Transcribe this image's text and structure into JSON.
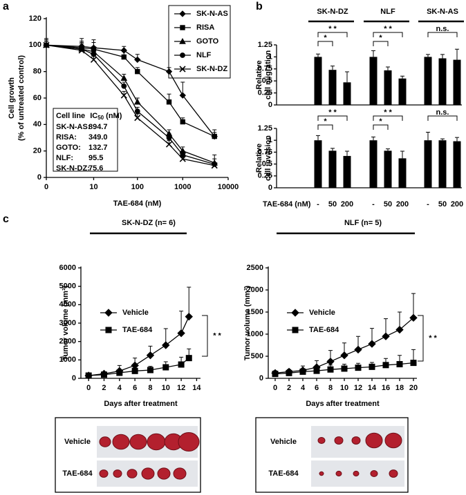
{
  "panel_labels": [
    "a",
    "b",
    "c"
  ],
  "chart_data": [
    {
      "type": "line",
      "ylabel": [
        "Cell growth",
        "(% of untreated control)"
      ],
      "xlabel": "TAE-684 (nM)",
      "xscale": "log1p",
      "x": [
        0,
        5,
        10,
        50,
        100,
        500,
        1000,
        5000
      ],
      "xlim": [
        0,
        10000
      ],
      "xticks": [
        0,
        10,
        100,
        1000,
        10000
      ],
      "ylim": [
        0,
        120
      ],
      "yticks": [
        0,
        20,
        40,
        60,
        80,
        100,
        120
      ],
      "legend": "upper right",
      "series": [
        {
          "name": "SK-N-AS",
          "marker": "diamond",
          "color": "#000000",
          "values": [
            100,
            99,
            98,
            96,
            89,
            80,
            62,
            31
          ],
          "errors": [
            3,
            4,
            6,
            3,
            4,
            3,
            10,
            3
          ]
        },
        {
          "name": "RISA",
          "marker": "square",
          "color": "#000000",
          "values": [
            100,
            98,
            97,
            91,
            80,
            57,
            42,
            31
          ],
          "errors": [
            3,
            3,
            5,
            4,
            3,
            6,
            3,
            5
          ]
        },
        {
          "name": "GOTO",
          "marker": "triangle",
          "color": "#000000",
          "values": [
            100,
            97,
            95,
            75,
            57,
            33,
            20,
            11
          ],
          "errors": [
            5,
            8,
            3,
            3,
            3,
            3,
            3,
            6
          ]
        },
        {
          "name": "NLF",
          "marker": "circle",
          "color": "#000000",
          "values": [
            100,
            97,
            93,
            69,
            50,
            30,
            17,
            10
          ],
          "errors": [
            4,
            5,
            4,
            3,
            3,
            3,
            3,
            4
          ]
        },
        {
          "name": "SK-N-DZ",
          "marker": "x",
          "color": "#000000",
          "values": [
            100,
            96,
            89,
            62,
            45,
            25,
            14,
            9
          ],
          "errors": [
            3,
            3,
            3,
            3,
            3,
            3,
            2,
            2
          ]
        }
      ],
      "table": {
        "header": [
          "Cell line",
          "IC",
          "50",
          " (nM)"
        ],
        "rows": [
          [
            "SK-N-AS:",
            "894.7"
          ],
          [
            "RISA:",
            "349.0"
          ],
          [
            "GOTO:",
            "132.7"
          ],
          [
            "NLF:",
            "95.5"
          ],
          [
            "SK-N-DZ:",
            "75.6"
          ]
        ]
      }
    },
    {
      "type": "bar-grid",
      "groups": [
        "SK-N-DZ",
        "NLF",
        "SK-N-AS"
      ],
      "categories": [
        "-",
        "50",
        "200"
      ],
      "xlabel": "TAE-684 (nM)",
      "ylim": [
        0,
        1.25
      ],
      "yticks": [
        0,
        0.25,
        0.5,
        0.75,
        1,
        1.25
      ],
      "color": "#000000",
      "rows": [
        {
          "ylabel": [
            "Relative",
            "cell migration"
          ],
          "values": [
            [
              1,
              0.73,
              0.47
            ],
            [
              1,
              0.72,
              0.55
            ],
            [
              1,
              0.97,
              0.94
            ]
          ],
          "errors": [
            [
              0.06,
              0.08,
              0.22
            ],
            [
              0.13,
              0.07,
              0.05
            ],
            [
              0.05,
              0.08,
              0.22
            ]
          ],
          "significance": [
            [
              "* *",
              "*"
            ],
            [
              "* *",
              "*"
            ],
            [
              "n.s."
            ]
          ]
        },
        {
          "ylabel": [
            "Relative",
            "cell invasion"
          ],
          "values": [
            [
              1,
              0.78,
              0.67
            ],
            [
              1,
              0.78,
              0.62
            ],
            [
              1,
              1,
              0.98
            ]
          ],
          "errors": [
            [
              0.1,
              0.05,
              0.1
            ],
            [
              0.07,
              0.04,
              0.15
            ],
            [
              0.17,
              0.03,
              0.08
            ]
          ],
          "significance": [
            [
              "* *",
              "*"
            ],
            [
              "* *",
              "*"
            ],
            [
              "n.s."
            ]
          ]
        }
      ]
    },
    {
      "type": "line",
      "title": "SK-N-DZ (n= 6)",
      "ylabel": [
        "Tumor volume (mm³)"
      ],
      "xlabel": "Days after treatment",
      "x": [
        0,
        2,
        4,
        6,
        8,
        10,
        12,
        13
      ],
      "xlim": [
        -1,
        14.5
      ],
      "xticks": [
        0,
        2,
        4,
        6,
        8,
        10,
        12,
        14
      ],
      "ylim": [
        0,
        6000
      ],
      "yticks": [
        0,
        1000,
        2000,
        3000,
        4000,
        5000,
        6000
      ],
      "legend": "upper left",
      "significance": "* *",
      "series": [
        {
          "name": "Vehicle",
          "marker": "diamond",
          "color": "#000000",
          "values": [
            150,
            250,
            400,
            700,
            1250,
            1800,
            2450,
            3350
          ],
          "errors": [
            100,
            100,
            300,
            400,
            500,
            900,
            1200,
            1600
          ]
        },
        {
          "name": "TAE-684",
          "marker": "square",
          "color": "#000000",
          "values": [
            150,
            200,
            300,
            400,
            450,
            600,
            750,
            1100
          ],
          "errors": [
            100,
            100,
            150,
            200,
            200,
            300,
            400,
            500
          ]
        }
      ]
    },
    {
      "type": "line",
      "title": "NLF (n= 5)",
      "ylabel": [
        "Tumor volume (mm³)"
      ],
      "xlabel": "Days after treatment",
      "x": [
        0,
        2,
        4,
        6,
        8,
        10,
        12,
        14,
        16,
        18,
        20
      ],
      "xlim": [
        -1,
        20.5
      ],
      "xticks": [
        0,
        2,
        4,
        6,
        8,
        10,
        12,
        14,
        16,
        18,
        20
      ],
      "ylim": [
        0,
        2500
      ],
      "yticks": [
        0,
        500,
        1000,
        1500,
        2000,
        2500
      ],
      "legend": "upper left",
      "significance": "* *",
      "series": [
        {
          "name": "Vehicle",
          "marker": "diamond",
          "color": "#000000",
          "values": [
            120,
            150,
            180,
            250,
            380,
            520,
            650,
            780,
            950,
            1100,
            1370
          ],
          "errors": [
            50,
            50,
            100,
            150,
            250,
            280,
            300,
            350,
            400,
            400,
            550
          ]
        },
        {
          "name": "TAE-684",
          "marker": "square",
          "color": "#000000",
          "values": [
            100,
            120,
            150,
            170,
            200,
            220,
            240,
            260,
            300,
            320,
            350
          ],
          "errors": [
            50,
            50,
            60,
            70,
            100,
            100,
            100,
            100,
            150,
            200,
            300
          ]
        }
      ]
    }
  ],
  "photos": [
    {
      "rows": [
        "Vehicle",
        "TAE-684"
      ]
    },
    {
      "rows": [
        "Vehicle",
        "TAE-684"
      ]
    }
  ]
}
